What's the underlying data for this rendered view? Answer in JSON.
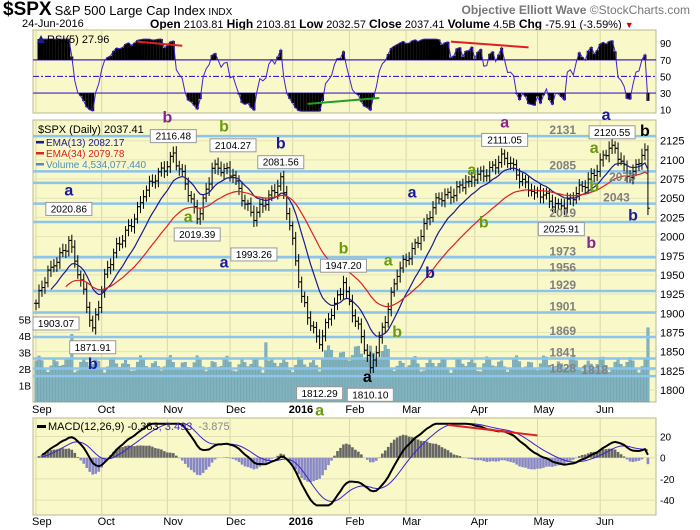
{
  "header": {
    "symbol": "$SPX",
    "name": "S&P 500 Large Cap Index",
    "exchange": "INDX",
    "brand": "Objective Elliott Wave",
    "copyright": "©StockCharts.com",
    "date": "24-Jun-2016",
    "open_label": "Open",
    "open": "2103.81",
    "high_label": "High",
    "high": "2103.81",
    "low_label": "Low",
    "low": "2032.57",
    "close_label": "Close",
    "close": "2037.41",
    "volume_label": "Volume",
    "volume": "4.5B",
    "chg_label": "Chg",
    "chg": "-75.91 (-3.59%)",
    "chg_arrow": "▼"
  },
  "colors": {
    "panel": "#f8f8c8",
    "level": "#8cc4ec",
    "ema13": "#1a1a8c",
    "ema34": "#e02020",
    "volume": "#7fb3c0",
    "rsi": "#4020d0",
    "navy": "#1a1a9c",
    "green": "#6a9a10",
    "purple": "#8a208a",
    "black": "#000000",
    "levelText": "#808080"
  },
  "chart_data": {
    "type": "ohlc",
    "title": "$SPX (Daily) 2037.41",
    "legend": {
      "ema13": "EMA(13) 2082.17",
      "ema34": "EMA(34) 2079.78",
      "volume": "Volume 4,534,077,440"
    },
    "rsi": {
      "label": "RSI(5) 27.96",
      "ticks": [
        90,
        70,
        50,
        30,
        10
      ],
      "bands": [
        70,
        50,
        30
      ]
    },
    "macd": {
      "label_main": "MACD(12,26,9) -0.383",
      "label_signal": ", 3.493",
      "label_hist": ", -3.875",
      "ticks": [
        20,
        0,
        -20,
        -40
      ],
      "ylim": [
        -46,
        33
      ]
    },
    "price_ticks": [
      2125,
      2100,
      2075,
      2050,
      2025,
      2000,
      1975,
      1950,
      1925,
      1900,
      1875,
      1850,
      1825,
      1800
    ],
    "ylim": [
      1798,
      2152
    ],
    "volume_ticks": [
      "1B",
      "2B",
      "3B",
      "4B",
      "5B"
    ],
    "months": [
      {
        "label": "Sep",
        "day": 0
      },
      {
        "label": "Oct",
        "day": 22
      },
      {
        "label": "Nov",
        "day": 44
      },
      {
        "label": "Dec",
        "day": 65
      },
      {
        "label": "2016",
        "day": 86,
        "bold": true
      },
      {
        "label": "Feb",
        "day": 105
      },
      {
        "label": "Mar",
        "day": 124
      },
      {
        "label": "Apr",
        "day": 147
      },
      {
        "label": "May",
        "day": 168
      },
      {
        "label": "Jun",
        "day": 189
      }
    ],
    "days": 206,
    "closes_keypoints": [
      [
        0,
        1913
      ],
      [
        5,
        1960
      ],
      [
        11,
        1995
      ],
      [
        19,
        1881
      ],
      [
        23,
        1951
      ],
      [
        36,
        2052
      ],
      [
        46,
        2109
      ],
      [
        54,
        2023
      ],
      [
        59,
        2089
      ],
      [
        66,
        2080
      ],
      [
        73,
        2021
      ],
      [
        82,
        2078
      ],
      [
        89,
        1922
      ],
      [
        95,
        1859
      ],
      [
        103,
        1940
      ],
      [
        112,
        1829
      ],
      [
        121,
        1948
      ],
      [
        135,
        2049
      ],
      [
        145,
        2072
      ],
      [
        157,
        2102
      ],
      [
        167,
        2057
      ],
      [
        176,
        2040
      ],
      [
        180,
        2048
      ],
      [
        193,
        2119
      ],
      [
        199,
        2077
      ],
      [
        204,
        2113
      ],
      [
        205,
        2037
      ]
    ],
    "volume_spikes": [
      [
        12,
        4.1
      ],
      [
        77,
        3.6
      ],
      [
        112,
        3.4
      ],
      [
        205,
        4.5
      ]
    ],
    "levels": [
      {
        "v": 2131,
        "t": "2131",
        "d": 172
      },
      {
        "v": 2085,
        "t": "2085",
        "d": 172
      },
      {
        "v": 2070,
        "t": "2070",
        "d": 192
      },
      {
        "v": 2043,
        "t": "2043",
        "d": 190
      },
      {
        "v": 2019,
        "t": "2019",
        "d": 172
      },
      {
        "v": 1973,
        "t": "1973",
        "d": 172
      },
      {
        "v": 1956,
        "t": "1956",
        "d": 172
      },
      {
        "v": 1929,
        "t": "1929",
        "d": 172
      },
      {
        "v": 1901,
        "t": "1901",
        "d": 172
      },
      {
        "v": 1869,
        "t": "1869",
        "d": 172
      },
      {
        "v": 1841,
        "t": "1841",
        "d": 172
      },
      {
        "v": 1828,
        "t": "1828",
        "d": 172
      },
      {
        "v": 1818,
        "t": "1818",
        "d": 172
      }
    ],
    "callouts": [
      {
        "t": "2116.48",
        "d": 46,
        "p": 2116,
        "k": "high"
      },
      {
        "t": "2104.27",
        "d": 66,
        "p": 2104,
        "k": "high"
      },
      {
        "t": "2081.56",
        "d": 82,
        "p": 2082,
        "k": "high"
      },
      {
        "t": "2020.86",
        "d": 11,
        "p": 2021,
        "k": "high"
      },
      {
        "t": "2019.39",
        "d": 54,
        "p": 2019,
        "k": "low"
      },
      {
        "t": "1993.26",
        "d": 73,
        "p": 1993,
        "k": "low"
      },
      {
        "t": "1903.07",
        "d": 0,
        "p": 1903,
        "k": "low"
      },
      {
        "t": "1871.91",
        "d": 19,
        "p": 1872,
        "k": "low"
      },
      {
        "t": "1947.20",
        "d": 103,
        "p": 1947,
        "k": "high"
      },
      {
        "t": "1812.29",
        "d": 95,
        "p": 1812,
        "k": "low"
      },
      {
        "t": "1810.10",
        "d": 112,
        "p": 1810,
        "k": "low"
      },
      {
        "t": "2111.05",
        "d": 157,
        "p": 2111,
        "k": "high"
      },
      {
        "t": "2025.91",
        "d": 176,
        "p": 2026,
        "k": "low"
      },
      {
        "t": "2120.55",
        "d": 193,
        "p": 2121,
        "k": "high"
      }
    ],
    "waves": [
      {
        "t": "a",
        "c": "navy",
        "d": 11,
        "p": 2046
      },
      {
        "t": "b",
        "c": "purple",
        "d": 44,
        "p": 2141
      },
      {
        "t": "b",
        "c": "green",
        "d": 63,
        "p": 2133
      },
      {
        "t": "b",
        "c": "navy",
        "d": 82,
        "p": 2111
      },
      {
        "t": "a",
        "c": "green",
        "d": 51,
        "p": 2019
      },
      {
        "t": "a",
        "c": "navy",
        "d": 63,
        "p": 1960
      },
      {
        "t": "b",
        "c": "navy",
        "d": 19,
        "p": 1831
      },
      {
        "t": "b",
        "c": "green",
        "d": 103,
        "p": 1978
      },
      {
        "t": "a",
        "c": "green",
        "d": 118,
        "p": 1962
      },
      {
        "t": "b",
        "c": "navy",
        "d": 132,
        "p": 1946
      },
      {
        "t": "b",
        "c": "green",
        "d": 121,
        "p": 1869
      },
      {
        "t": "a",
        "c": "navy",
        "d": 126,
        "p": 2051
      },
      {
        "t": "a",
        "c": "green",
        "d": 146,
        "p": 2080
      },
      {
        "t": "b",
        "c": "green",
        "d": 150,
        "p": 2012
      },
      {
        "t": "a",
        "c": "purple",
        "d": 157,
        "p": 2138
      },
      {
        "t": "b",
        "c": "purple",
        "d": 179,
        "p": 1985
      },
      {
        "t": "a",
        "c": "green",
        "d": 187,
        "p": 2113
      },
      {
        "t": "a",
        "c": "navy",
        "d": 191,
        "p": 2148
      },
      {
        "t": "b",
        "c": "green",
        "d": 188,
        "p": 2059
      },
      {
        "t": "b",
        "c": "black",
        "d": 204,
        "p": 2131
      },
      {
        "t": "b",
        "c": "navy",
        "d": 200,
        "p": 2029
      },
      {
        "t": "a",
        "c": "green",
        "d": 95,
        "p": 1786
      },
      {
        "t": "a",
        "c": "black",
        "d": 111,
        "p": 1783
      }
    ]
  }
}
